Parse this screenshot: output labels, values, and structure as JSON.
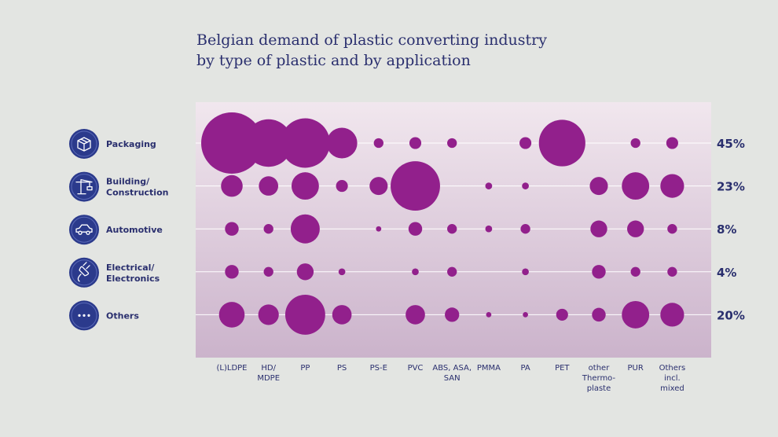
{
  "title_lines": [
    "Belgian demand of plastic converting industry",
    "by type of plastic and by application"
  ],
  "chart_data": {
    "type": "bubble-matrix",
    "title": "Belgian demand of plastic converting industry by type of plastic and by application",
    "columns": [
      [
        "(L)LDPE"
      ],
      [
        "HD/",
        "MDPE"
      ],
      [
        "PP"
      ],
      [
        "PS"
      ],
      [
        "PS-E"
      ],
      [
        "PVC"
      ],
      [
        "ABS, ASA,",
        "SAN"
      ],
      [
        "PMMA"
      ],
      [
        "PA"
      ],
      [
        "PET"
      ],
      [
        "other",
        "Thermo-",
        "plaste"
      ],
      [
        "PUR"
      ],
      [
        "Others",
        "incl.",
        "mixed"
      ]
    ],
    "rows": [
      {
        "label": [
          "Packaging"
        ],
        "icon": "box-icon",
        "share": "45%",
        "values": [
          40,
          24,
          26,
          10,
          1,
          1.5,
          1,
          null,
          1.5,
          23,
          null,
          1,
          1.5
        ]
      },
      {
        "label": [
          "Building/",
          "Construction"
        ],
        "icon": "crane-icon",
        "share": "23%",
        "values": [
          5,
          4,
          8,
          1.5,
          3.5,
          26,
          null,
          0.5,
          0.5,
          null,
          3.5,
          8,
          6
        ]
      },
      {
        "label": [
          "Automotive"
        ],
        "icon": "car-icon",
        "share": "8%",
        "values": [
          2,
          1,
          9,
          null,
          0.3,
          2,
          1,
          0.5,
          1,
          null,
          3,
          3,
          1
        ]
      },
      {
        "label": [
          "Electrical/",
          "Electronics"
        ],
        "icon": "plug-icon",
        "share": "4%",
        "values": [
          2,
          1,
          3,
          0.5,
          null,
          0.5,
          1,
          null,
          0.5,
          null,
          2,
          1,
          1
        ]
      },
      {
        "label": [
          "Others"
        ],
        "icon": "dots-icon",
        "share": "20%",
        "values": [
          7,
          4.5,
          17,
          4,
          null,
          4,
          2.2,
          0.3,
          0.3,
          1.5,
          2,
          8,
          6
        ]
      }
    ],
    "size_encoding": "bubble area proportional to share"
  },
  "colors": {
    "bubble": "#92208c",
    "text": "#2a2f6e",
    "icon_bg": "#2b3a8c",
    "gradient_top": "#f1e7ee",
    "gradient_bottom": "#cbb3cb"
  }
}
